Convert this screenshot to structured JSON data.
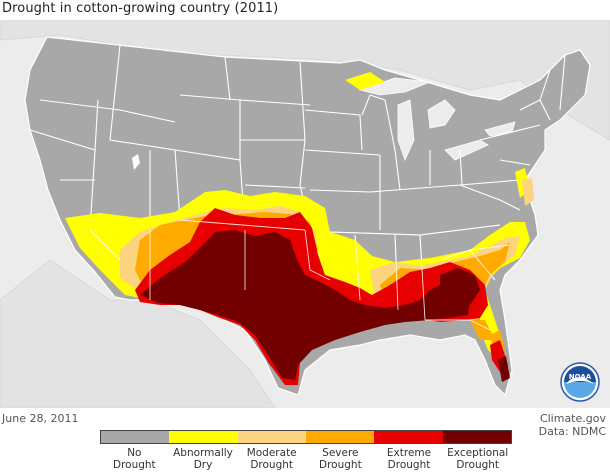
{
  "title": "Drought in cotton-growing country (2011)",
  "date": "June 28, 2011",
  "credit": {
    "source": "Climate.gov",
    "data": "Data: NDMC"
  },
  "logo": {
    "icon": "noaa-logo",
    "text": "NOAA"
  },
  "legend": {
    "items": [
      {
        "line1": "No",
        "line2": "Drought",
        "color": "#a8a8a8"
      },
      {
        "line1": "Abnormally",
        "line2": "Dry",
        "color": "#ffff00"
      },
      {
        "line1": "Moderate",
        "line2": "Drought",
        "color": "#fcd37f"
      },
      {
        "line1": "Severe",
        "line2": "Drought",
        "color": "#ffaa00"
      },
      {
        "line1": "Extreme",
        "line2": "Drought",
        "color": "#e60000"
      },
      {
        "line1": "Exceptional",
        "line2": "Drought",
        "color": "#730000"
      }
    ]
  },
  "colors": {
    "land": "#a8a8a8",
    "background": "#ececec",
    "water": "#e9e9e9",
    "state_border": "#ffffff"
  }
}
